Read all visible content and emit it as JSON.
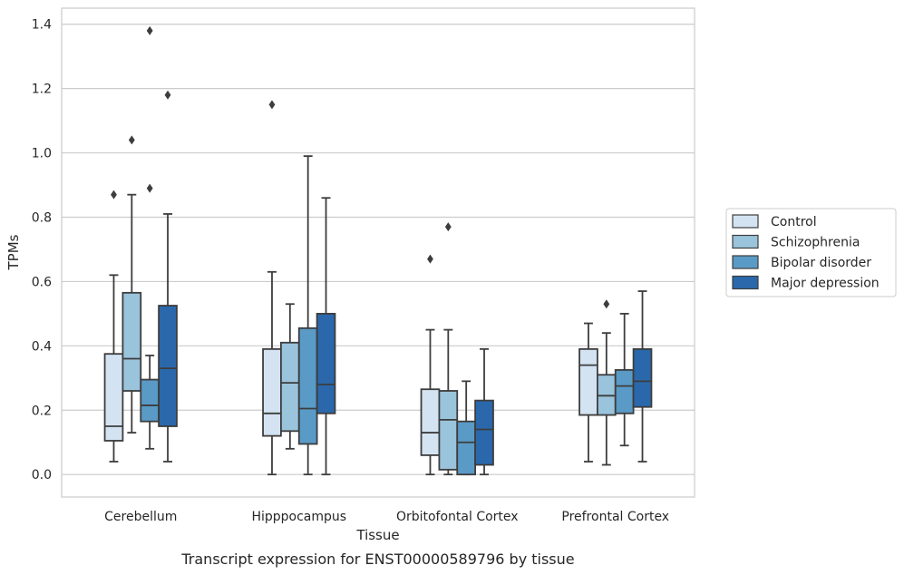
{
  "caption": "Transcript expression for ENST00000589796 by tissue",
  "chart_data": {
    "type": "boxplot",
    "xlabel": "Tissue",
    "ylabel": "TPMs",
    "ylim": [
      -0.07,
      1.45
    ],
    "yticks": [
      0.0,
      0.2,
      0.4,
      0.6,
      0.8,
      1.0,
      1.2,
      1.4
    ],
    "ytick_labels": [
      "0.0",
      "0.2",
      "0.4",
      "0.6",
      "0.8",
      "1.0",
      "1.2",
      "1.4"
    ],
    "grid": "horizontal",
    "legend_position": "right-outside",
    "categories": [
      "Cerebellum",
      "Hipppocampus",
      "Orbitofontal Cortex",
      "Prefrontal Cortex"
    ],
    "series": [
      {
        "name": "Control",
        "color": "#d4e3f2",
        "boxes": [
          {
            "whislo": 0.04,
            "q1": 0.105,
            "med": 0.15,
            "q3": 0.375,
            "whishi": 0.62,
            "fliers": [
              0.87
            ]
          },
          {
            "whislo": 0.0,
            "q1": 0.12,
            "med": 0.19,
            "q3": 0.39,
            "whishi": 0.63,
            "fliers": [
              1.15
            ]
          },
          {
            "whislo": 0.0,
            "q1": 0.06,
            "med": 0.13,
            "q3": 0.265,
            "whishi": 0.45,
            "fliers": [
              0.67
            ]
          },
          {
            "whislo": 0.04,
            "q1": 0.185,
            "med": 0.34,
            "q3": 0.39,
            "whishi": 0.47,
            "fliers": []
          }
        ]
      },
      {
        "name": "Schizophrenia",
        "color": "#9ac3dc",
        "boxes": [
          {
            "whislo": 0.13,
            "q1": 0.26,
            "med": 0.36,
            "q3": 0.565,
            "whishi": 0.87,
            "fliers": [
              1.04
            ]
          },
          {
            "whislo": 0.08,
            "q1": 0.135,
            "med": 0.285,
            "q3": 0.41,
            "whishi": 0.53,
            "fliers": []
          },
          {
            "whislo": 0.0,
            "q1": 0.015,
            "med": 0.17,
            "q3": 0.26,
            "whishi": 0.45,
            "fliers": [
              0.77
            ]
          },
          {
            "whislo": 0.03,
            "q1": 0.185,
            "med": 0.245,
            "q3": 0.31,
            "whishi": 0.44,
            "fliers": [
              0.53
            ]
          }
        ]
      },
      {
        "name": "Bipolar disorder",
        "color": "#5a9ac6",
        "boxes": [
          {
            "whislo": 0.08,
            "q1": 0.165,
            "med": 0.215,
            "q3": 0.295,
            "whishi": 0.37,
            "fliers": [
              0.89,
              1.38
            ]
          },
          {
            "whislo": 0.0,
            "q1": 0.095,
            "med": 0.205,
            "q3": 0.455,
            "whishi": 0.99,
            "fliers": []
          },
          {
            "whislo": 0.0,
            "q1": 0.0,
            "med": 0.1,
            "q3": 0.165,
            "whishi": 0.29,
            "fliers": []
          },
          {
            "whislo": 0.09,
            "q1": 0.19,
            "med": 0.275,
            "q3": 0.325,
            "whishi": 0.5,
            "fliers": []
          }
        ]
      },
      {
        "name": "Major depression",
        "color": "#2a68ab",
        "boxes": [
          {
            "whislo": 0.04,
            "q1": 0.15,
            "med": 0.33,
            "q3": 0.525,
            "whishi": 0.81,
            "fliers": [
              1.18
            ]
          },
          {
            "whislo": 0.0,
            "q1": 0.19,
            "med": 0.28,
            "q3": 0.5,
            "whishi": 0.86,
            "fliers": []
          },
          {
            "whislo": 0.0,
            "q1": 0.03,
            "med": 0.14,
            "q3": 0.23,
            "whishi": 0.39,
            "fliers": []
          },
          {
            "whislo": 0.04,
            "q1": 0.21,
            "med": 0.29,
            "q3": 0.39,
            "whishi": 0.57,
            "fliers": []
          }
        ]
      }
    ]
  }
}
